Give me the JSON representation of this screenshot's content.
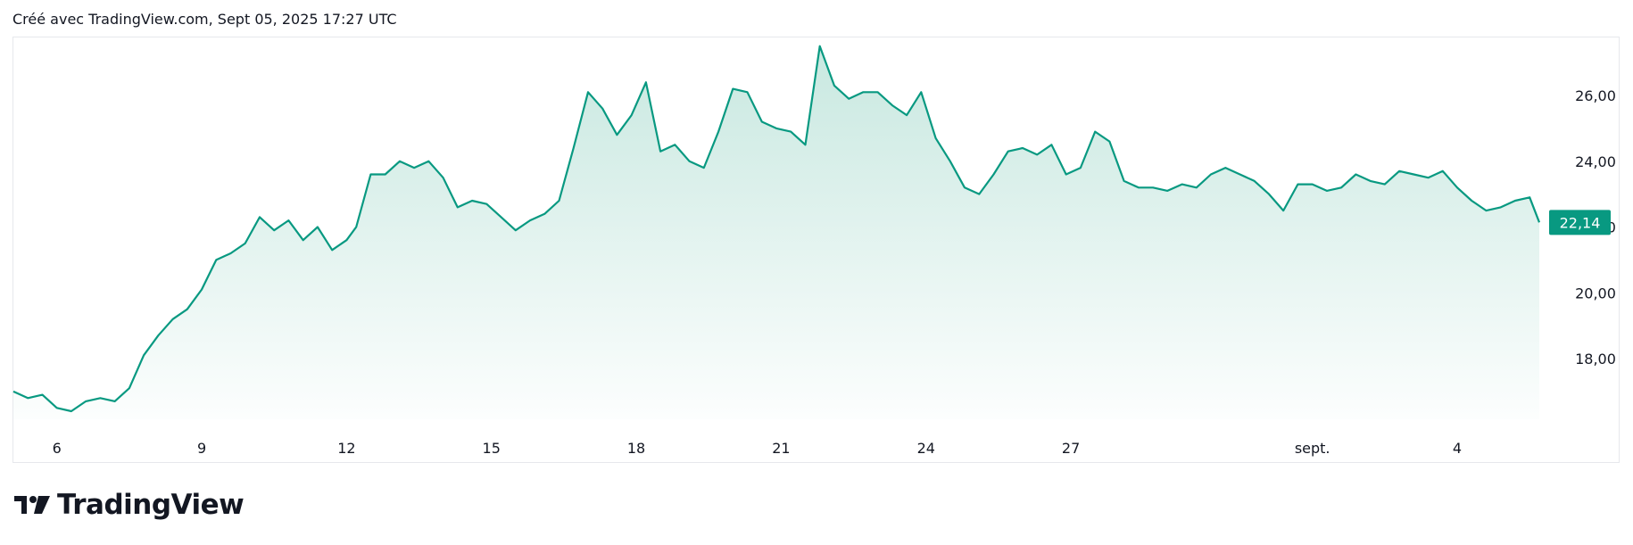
{
  "header": {
    "caption": "Créé avec TradingView.com, Sept 05, 2025 17:27 UTC"
  },
  "footer": {
    "logo_text": "TradingView"
  },
  "colors": {
    "line": "#089981",
    "label_bg": "#089981",
    "area_top": "#c8e8e0",
    "axis_text": "#131722",
    "border": "#e6e8ec"
  },
  "chart_data": {
    "type": "area",
    "title": "",
    "xlabel": "",
    "ylabel": "",
    "x_ticks": [
      "6",
      "9",
      "12",
      "15",
      "18",
      "21",
      "24",
      "27",
      "sept.",
      "4"
    ],
    "x_tick_days": [
      0,
      3,
      6,
      9,
      12,
      15,
      18,
      21,
      26,
      29
    ],
    "x_range_days": [
      -0.9,
      30.7
    ],
    "y_ticks": [
      "26,00",
      "24,00",
      "22,00",
      "20,00",
      "18,00"
    ],
    "y_tick_values": [
      26,
      24,
      22,
      20,
      18
    ],
    "ylim": [
      16.7,
      27.7
    ],
    "last_price_label": "22,14",
    "last_price": 22.14,
    "grid": false,
    "series": [
      {
        "x_days": [
          -0.9,
          -0.6,
          -0.3,
          0,
          0.3,
          0.6,
          0.9,
          1.2,
          1.5,
          1.8,
          2.1,
          2.4,
          2.7,
          3.0,
          3.3,
          3.6,
          3.9,
          4.2,
          4.5,
          4.8,
          5.1,
          5.4,
          5.7,
          6.0,
          6.2,
          6.5,
          6.8,
          7.1,
          7.4,
          7.7,
          8.0,
          8.3,
          8.6,
          8.9,
          9.2,
          9.5,
          9.8,
          10.1,
          10.4,
          10.7,
          11.0,
          11.3,
          11.6,
          11.9,
          12.2,
          12.5,
          12.8,
          13.1,
          13.4,
          13.7,
          14.0,
          14.3,
          14.6,
          14.9,
          15.2,
          15.5,
          15.8,
          16.1,
          16.4,
          16.7,
          17.0,
          17.3,
          17.6,
          17.9,
          18.2,
          18.5,
          18.8,
          19.1,
          19.4,
          19.7,
          20.0,
          20.3,
          20.6,
          20.9,
          21.2,
          21.5,
          21.8,
          22.1,
          22.4,
          22.7,
          23.0,
          23.3,
          23.6,
          23.9,
          24.2,
          24.5,
          24.8,
          25.1,
          25.4,
          25.7,
          26.0,
          26.3,
          26.6,
          26.9,
          27.2,
          27.5,
          27.8,
          28.1,
          28.4,
          28.7,
          29.0,
          29.3,
          29.6,
          29.9,
          30.2,
          30.5,
          30.7
        ],
        "values": [
          17.0,
          16.8,
          16.9,
          16.5,
          16.4,
          16.7,
          16.8,
          16.7,
          17.1,
          18.1,
          18.7,
          19.2,
          19.5,
          20.1,
          21.0,
          21.2,
          21.5,
          22.3,
          21.9,
          22.2,
          21.6,
          22.0,
          21.3,
          21.6,
          22.0,
          23.6,
          23.6,
          24.0,
          23.8,
          24.0,
          23.5,
          22.6,
          22.8,
          22.7,
          22.3,
          21.9,
          22.2,
          22.4,
          22.8,
          24.4,
          26.1,
          25.6,
          24.8,
          25.4,
          26.4,
          24.3,
          24.5,
          24.0,
          23.8,
          24.9,
          26.2,
          26.1,
          25.2,
          25.0,
          24.9,
          24.5,
          27.5,
          26.3,
          25.9,
          26.1,
          26.1,
          25.7,
          25.4,
          26.1,
          24.7,
          24.0,
          23.2,
          23.0,
          23.6,
          24.3,
          24.4,
          24.2,
          24.5,
          23.6,
          23.8,
          24.9,
          24.6,
          23.4,
          23.2,
          23.2,
          23.1,
          23.3,
          23.2,
          23.6,
          23.8,
          23.6,
          23.4,
          23.0,
          22.5,
          23.3,
          23.3,
          23.1,
          23.2,
          23.6,
          23.4,
          23.3,
          23.7,
          23.6,
          23.5,
          23.7,
          23.2,
          22.8,
          22.5,
          22.6,
          22.8,
          22.9,
          22.14
        ]
      }
    ]
  }
}
